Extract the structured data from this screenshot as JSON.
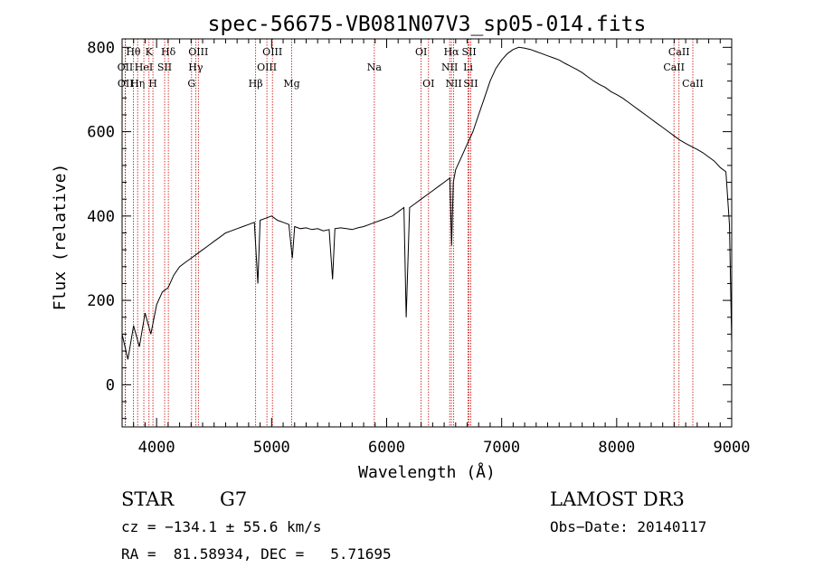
{
  "chart_data": {
    "type": "line",
    "title": "spec-56675-VB081N07V3_sp05-014.fits",
    "xlabel": "Wavelength (Å)",
    "ylabel": "Flux (relative)",
    "xlim": [
      3700,
      9000
    ],
    "ylim": [
      -100,
      820
    ],
    "xticks": [
      4000,
      5000,
      6000,
      7000,
      8000,
      9000
    ],
    "yticks": [
      0,
      200,
      400,
      600,
      800
    ],
    "grid": false,
    "series": [
      {
        "name": "flux",
        "color": "#000000",
        "x": [
          3700,
          3750,
          3800,
          3850,
          3900,
          3950,
          4000,
          4050,
          4100,
          4150,
          4200,
          4250,
          4300,
          4350,
          4400,
          4450,
          4500,
          4550,
          4600,
          4650,
          4700,
          4750,
          4800,
          4850,
          4880,
          4900,
          4950,
          5000,
          5050,
          5100,
          5150,
          5180,
          5200,
          5250,
          5300,
          5350,
          5400,
          5450,
          5500,
          5530,
          5550,
          5600,
          5650,
          5700,
          5750,
          5800,
          5850,
          5900,
          5950,
          6000,
          6050,
          6100,
          6150,
          6170,
          6200,
          6250,
          6300,
          6350,
          6400,
          6450,
          6500,
          6550,
          6565,
          6580,
          6600,
          6650,
          6700,
          6750,
          6800,
          6850,
          6900,
          6950,
          7000,
          7050,
          7100,
          7150,
          7200,
          7250,
          7300,
          7350,
          7400,
          7450,
          7500,
          7550,
          7600,
          7650,
          7700,
          7750,
          7800,
          7850,
          7900,
          7950,
          8000,
          8050,
          8100,
          8150,
          8200,
          8250,
          8300,
          8350,
          8400,
          8450,
          8500,
          8550,
          8600,
          8650,
          8700,
          8750,
          8800,
          8850,
          8900,
          8950,
          8980,
          9000
        ],
        "y": [
          120,
          60,
          140,
          90,
          170,
          120,
          190,
          220,
          230,
          260,
          280,
          290,
          300,
          310,
          320,
          330,
          340,
          350,
          360,
          365,
          370,
          375,
          380,
          385,
          240,
          390,
          395,
          400,
          390,
          385,
          380,
          300,
          375,
          370,
          372,
          368,
          370,
          365,
          368,
          250,
          370,
          372,
          370,
          368,
          372,
          375,
          380,
          385,
          390,
          395,
          400,
          410,
          420,
          160,
          420,
          430,
          440,
          450,
          460,
          470,
          480,
          490,
          330,
          480,
          510,
          540,
          570,
          600,
          640,
          680,
          720,
          750,
          770,
          785,
          795,
          800,
          798,
          795,
          790,
          785,
          780,
          775,
          770,
          762,
          755,
          748,
          740,
          730,
          720,
          712,
          705,
          695,
          688,
          680,
          670,
          660,
          650,
          640,
          630,
          620,
          610,
          600,
          590,
          580,
          572,
          565,
          558,
          550,
          540,
          530,
          515,
          505,
          380,
          100
        ]
      }
    ],
    "line_labels": [
      {
        "label": "Hθ",
        "wavelength": 3798,
        "row": 0
      },
      {
        "label": "OII",
        "wavelength": 3727,
        "row": 1
      },
      {
        "label": "OII",
        "wavelength": 3729,
        "row": 2
      },
      {
        "label": "K",
        "wavelength": 3934,
        "row": 0
      },
      {
        "label": "HeI",
        "wavelength": 3889,
        "row": 1
      },
      {
        "label": "Hη",
        "wavelength": 3835,
        "row": 2
      },
      {
        "label": "H",
        "wavelength": 3968,
        "row": 2
      },
      {
        "label": "Hδ",
        "wavelength": 4102,
        "row": 0
      },
      {
        "label": "SII",
        "wavelength": 4070,
        "row": 1
      },
      {
        "label": "OIII",
        "wavelength": 4363,
        "row": 0
      },
      {
        "label": "Hγ",
        "wavelength": 4340,
        "row": 1
      },
      {
        "label": "G",
        "wavelength": 4304,
        "row": 2
      },
      {
        "label": "Hβ",
        "wavelength": 4861,
        "row": 2
      },
      {
        "label": "OIII",
        "wavelength": 5007,
        "row": 0
      },
      {
        "label": "OIII",
        "wavelength": 4959,
        "row": 1
      },
      {
        "label": "Mg",
        "wavelength": 5175,
        "row": 2
      },
      {
        "label": "Na",
        "wavelength": 5893,
        "row": 1
      },
      {
        "label": "OI",
        "wavelength": 6300,
        "row": 0
      },
      {
        "label": "OI",
        "wavelength": 6364,
        "row": 2
      },
      {
        "label": "Hα",
        "wavelength": 6563,
        "row": 0
      },
      {
        "label": "SII",
        "wavelength": 6717,
        "row": 0
      },
      {
        "label": "NII",
        "wavelength": 6548,
        "row": 1
      },
      {
        "label": "Li",
        "wavelength": 6708,
        "row": 1
      },
      {
        "label": "NII",
        "wavelength": 6583,
        "row": 2
      },
      {
        "label": "SII",
        "wavelength": 6731,
        "row": 2
      },
      {
        "label": "CaII",
        "wavelength": 8542,
        "row": 0
      },
      {
        "label": "CaII",
        "wavelength": 8498,
        "row": 1
      },
      {
        "label": "CaII",
        "wavelength": 8662,
        "row": 2
      }
    ],
    "line_color": "#cc0000"
  },
  "info": {
    "object_class": "STAR",
    "subclass": "G7",
    "survey": "LAMOST DR3",
    "redshift": "cz = −134.1 ± 55.6 km/s",
    "obs_date": "Obs−Date: 20140117",
    "coords": "RA =  81.58934, DEC =   5.71695"
  }
}
